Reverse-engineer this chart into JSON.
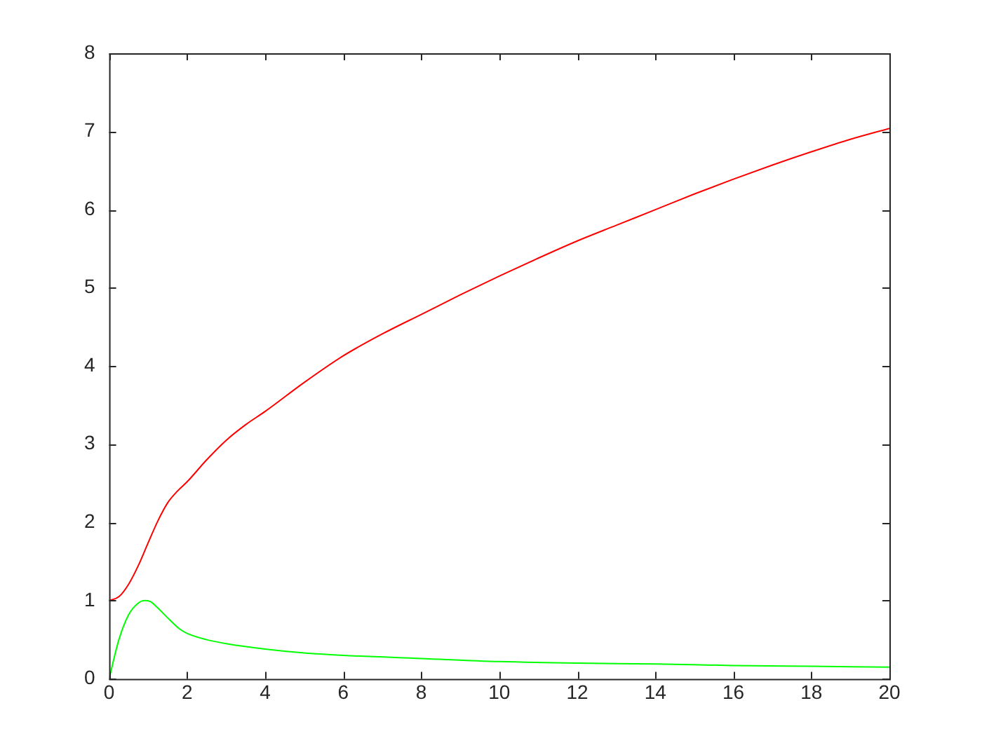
{
  "chart_data": {
    "type": "line",
    "xlim": [
      0,
      20
    ],
    "ylim": [
      0,
      8
    ],
    "xticks": [
      0,
      2,
      4,
      6,
      8,
      10,
      12,
      14,
      16,
      18,
      20
    ],
    "yticks": [
      0,
      1,
      2,
      3,
      4,
      5,
      6,
      7,
      8
    ],
    "marker": "none",
    "line_style": "solid",
    "legend": false,
    "series": [
      {
        "color": "#ff0000",
        "x": [
          0,
          0.25,
          0.5,
          0.75,
          1,
          1.25,
          1.5,
          1.75,
          2,
          2.5,
          3,
          3.5,
          4,
          5,
          6,
          7,
          8,
          9,
          10,
          11,
          12,
          13,
          14,
          15,
          16,
          17,
          18,
          19,
          20
        ],
        "values": [
          1,
          1.05,
          1.21,
          1.45,
          1.74,
          2.02,
          2.25,
          2.4,
          2.52,
          2.8,
          3.05,
          3.25,
          3.42,
          3.79,
          4.13,
          4.41,
          4.66,
          4.91,
          5.15,
          5.38,
          5.6,
          5.8,
          6.0,
          6.2,
          6.39,
          6.57,
          6.74,
          6.9,
          7.04
        ]
      },
      {
        "color": "#00ff00",
        "x": [
          0,
          0.25,
          0.5,
          0.75,
          0.9,
          1.05,
          1.2,
          1.5,
          1.8,
          2,
          2.5,
          3,
          4,
          5,
          6,
          8,
          10,
          12,
          14,
          16,
          18,
          20
        ],
        "values": [
          0,
          0.5,
          0.82,
          0.97,
          1.0,
          0.99,
          0.93,
          0.78,
          0.64,
          0.58,
          0.5,
          0.45,
          0.38,
          0.33,
          0.3,
          0.26,
          0.22,
          0.2,
          0.19,
          0.17,
          0.16,
          0.15
        ]
      }
    ]
  }
}
